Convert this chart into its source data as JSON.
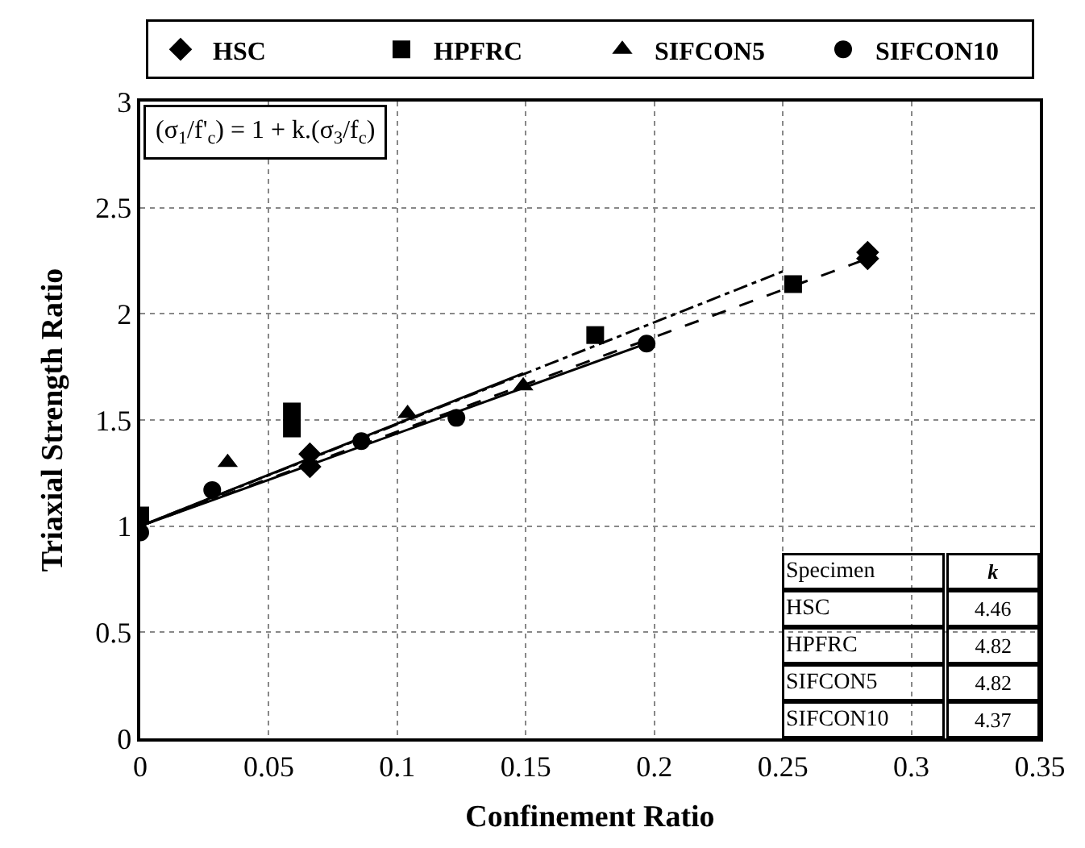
{
  "chart_data": {
    "type": "scatter",
    "xlabel": "Confinement Ratio",
    "ylabel": "Triaxial Strength Ratio",
    "xlim": [
      0,
      0.35
    ],
    "xticks": [
      0,
      0.05,
      0.1,
      0.15,
      0.2,
      0.25,
      0.3,
      0.35
    ],
    "ylim": [
      0,
      3
    ],
    "yticks": [
      0,
      0.5,
      1,
      1.5,
      2,
      2.5,
      3
    ],
    "grid": true,
    "legend": "top",
    "series": [
      {
        "name": "HSC",
        "color": "#000000",
        "marker": "diamond",
        "x": [
          0.066,
          0.066,
          0.087,
          0.283,
          0.283
        ],
        "values": [
          1.28,
          1.34,
          null,
          2.26,
          2.29
        ]
      },
      {
        "name": "HPFRC",
        "color": "#000000",
        "marker": "square",
        "x": [
          0,
          0.059,
          0.059,
          0.177,
          0.254
        ],
        "values": [
          1.05,
          1.54,
          1.46,
          1.9,
          2.14
        ]
      },
      {
        "name": "SIFCON5",
        "color": "#000000",
        "marker": "triangle",
        "x": [
          0.034,
          0.104,
          0.149
        ],
        "values": [
          1.3,
          1.53,
          1.66
        ]
      },
      {
        "name": "SIFCON10",
        "color": "#000000",
        "marker": "circle",
        "x": [
          0,
          0.028,
          0.086,
          0.123,
          0.197
        ],
        "values": [
          0.97,
          1.17,
          1.4,
          1.51,
          1.86
        ]
      },
      {
        "type": "line",
        "color": "#000000",
        "line_style": "dotted",
        "x": [
          0,
          0.283
        ],
        "values": [
          1,
          2.26
        ]
      },
      {
        "type": "line",
        "color": "#000000",
        "line_style": "dashed",
        "x": [
          0,
          0.25
        ],
        "values": [
          1,
          2.2
        ]
      },
      {
        "type": "line",
        "color": "#000000",
        "line_style": "solid",
        "x": [
          0,
          0.149
        ],
        "values": [
          1,
          1.72
        ]
      },
      {
        "type": "line",
        "color": "#000000",
        "line_style": "solid",
        "x": [
          0,
          0.197
        ],
        "values": [
          1,
          1.86
        ]
      }
    ],
    "annotations": [
      "(σ$_{1}$/f'$_{c}$) = 1 + k.(σ$_{3}$/f$_{c}$)",
      "Specimen",
      "k",
      "HSC",
      "4.46",
      "HPFRC",
      "4.82",
      "SIFCON5",
      "4.82",
      "SIFCON10",
      "4.37"
    ]
  }
}
